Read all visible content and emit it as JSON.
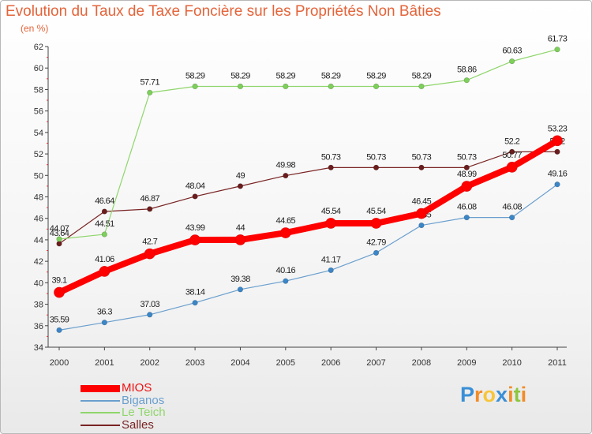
{
  "chart_data": {
    "type": "line",
    "title": "Evolution du Taux de Taxe Foncière sur les Propriétés Non Bâties",
    "unit_label": "(en %)",
    "x": [
      "2000",
      "2001",
      "2002",
      "2003",
      "2004",
      "2005",
      "2006",
      "2007",
      "2008",
      "2009",
      "2010",
      "2011"
    ],
    "ylim": [
      34,
      62
    ],
    "yticks": [
      "34",
      "36",
      "38",
      "40",
      "42",
      "44",
      "46",
      "48",
      "50",
      "52",
      "54",
      "56",
      "58",
      "60",
      "62"
    ],
    "grid": false,
    "legend_position": "bottom-left",
    "series": [
      {
        "name": "MIOS",
        "color": "#ff0000",
        "values": [
          39.1,
          41.06,
          42.7,
          43.99,
          44,
          44.65,
          45.54,
          45.54,
          46.45,
          48.99,
          50.77,
          53.23
        ],
        "labels": [
          "39.1",
          "41.06",
          "42.7",
          "43.99",
          "44",
          "44.65",
          "45.54",
          "45.54",
          "46.45",
          "48.99",
          "50.77",
          "53.23"
        ]
      },
      {
        "name": "Biganos",
        "color": "#6a9fce",
        "values": [
          35.59,
          36.3,
          37.03,
          38.14,
          39.38,
          40.16,
          41.17,
          42.79,
          45.35,
          46.08,
          46.08,
          49.16
        ],
        "labels": [
          "35.59",
          "36.3",
          "37.03",
          "38.14",
          "39.38",
          "40.16",
          "41.17",
          "42.79",
          "45.35",
          "46.08",
          "46.08",
          "49.16"
        ]
      },
      {
        "name": "Le Teich",
        "color": "#8fd66b",
        "values": [
          44.07,
          44.51,
          57.71,
          58.29,
          58.29,
          58.29,
          58.29,
          58.29,
          58.29,
          58.86,
          60.63,
          61.73
        ],
        "labels": [
          "44.07",
          "44.51",
          "57.71",
          "58.29",
          "58.29",
          "58.29",
          "58.29",
          "58.29",
          "58.29",
          "58.86",
          "60.63",
          "61.73"
        ]
      },
      {
        "name": "Salles",
        "color": "#7a2424",
        "values": [
          43.64,
          46.64,
          46.87,
          48.04,
          49,
          49.98,
          50.73,
          50.73,
          50.73,
          50.73,
          52.2,
          52.2
        ],
        "labels": [
          "43.64",
          "46.64",
          "46.87",
          "48.04",
          "49",
          "49.98",
          "50.73",
          "50.73",
          "50.73",
          "50.73",
          "52.2",
          "52.2"
        ]
      }
    ]
  },
  "logo": {
    "letters": [
      "P",
      "r",
      "o",
      "x",
      "i",
      "t",
      "i"
    ],
    "colors": [
      "#3a8fd6",
      "#f28c28",
      "#f7c53a",
      "#3a8fd6",
      "#f28c28",
      "#8dc63f",
      "#f28c28"
    ]
  }
}
